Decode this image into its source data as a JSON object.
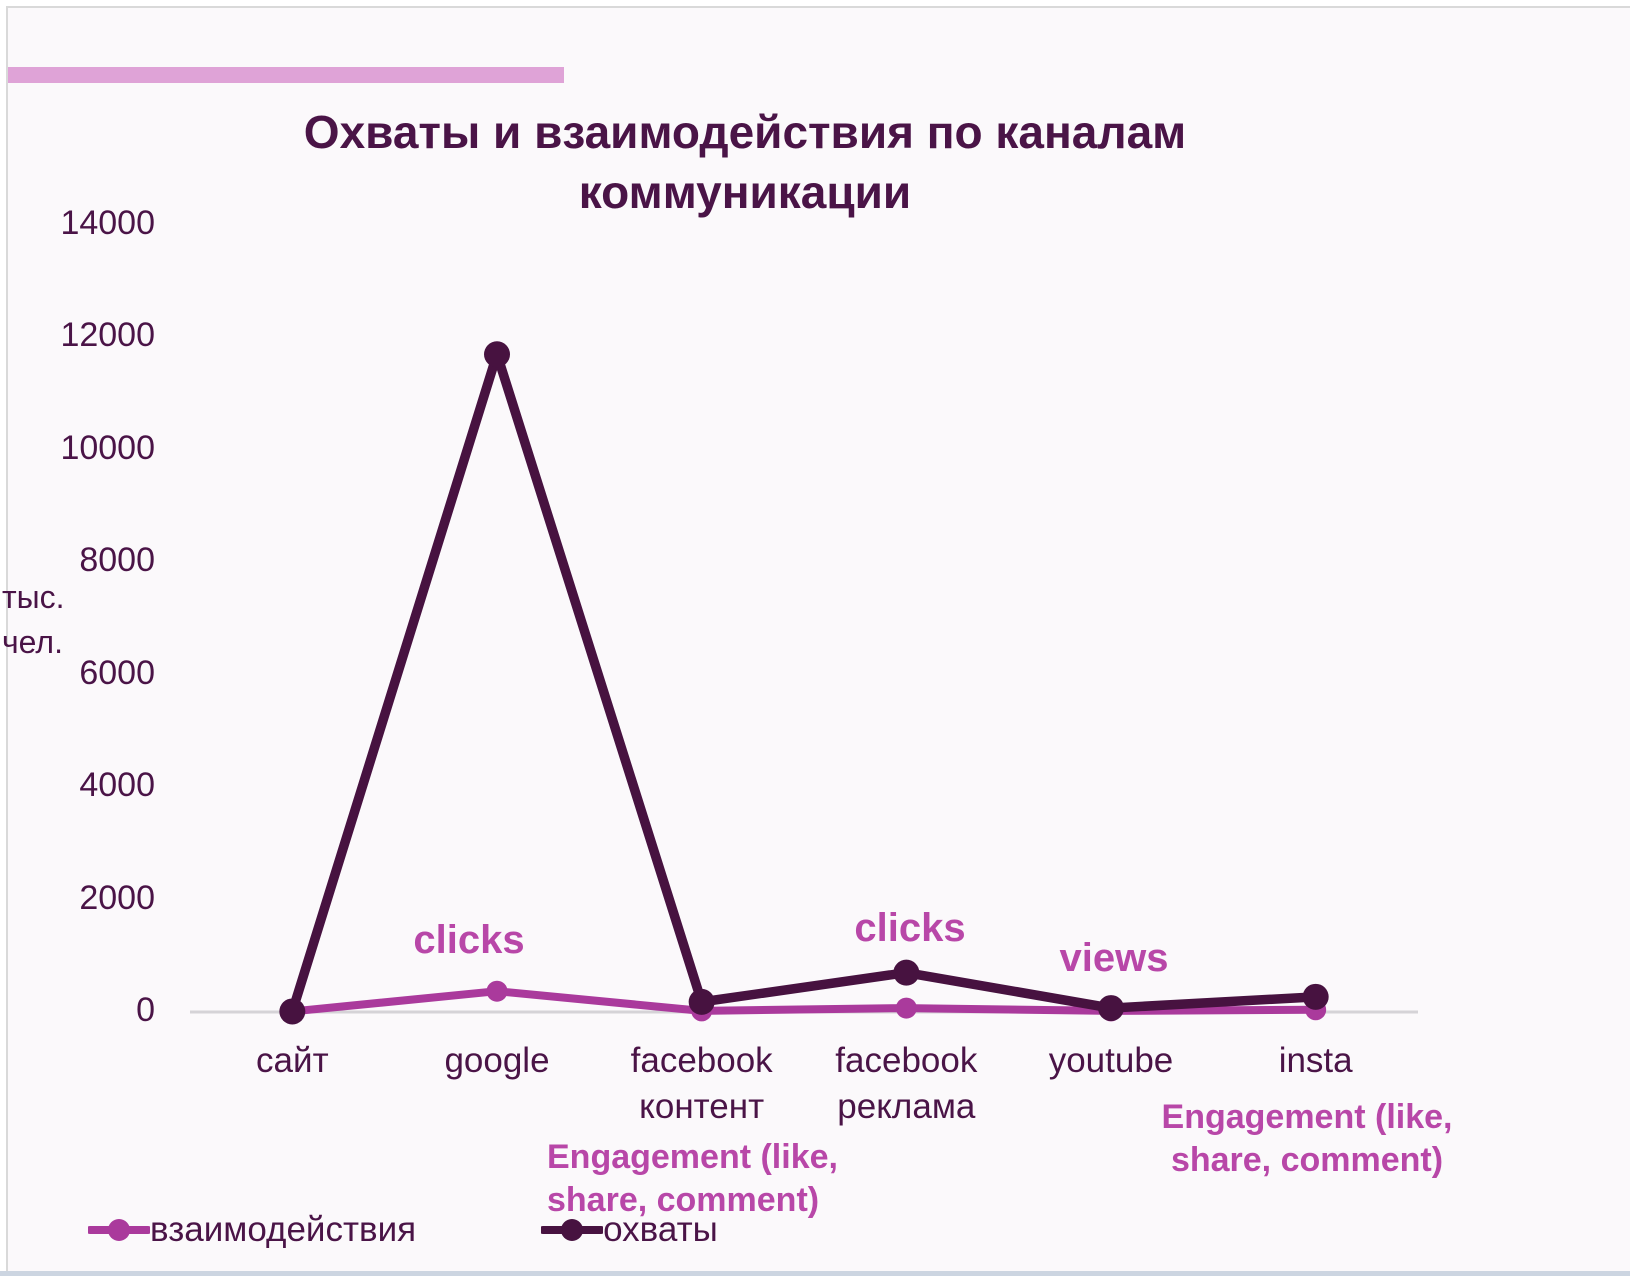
{
  "slide": {
    "accent_bar_color": "#dfa3d7"
  },
  "chart_data": {
    "type": "line",
    "title": "Охваты и взаимодействия по каналам коммуникации",
    "ylabel": "тыс. чел.",
    "xlabel": "",
    "categories": [
      "сайт",
      "google",
      "facebook контент",
      "facebook реклама",
      "youtube",
      "insta"
    ],
    "series": [
      {
        "name": "взаимодействия",
        "color": "#aa3a9c",
        "values": [
          10,
          370,
          20,
          70,
          20,
          40
        ]
      },
      {
        "name": "охваты",
        "color": "#471240",
        "values": [
          10,
          11700,
          180,
          700,
          70,
          270
        ]
      }
    ],
    "ylim": [
      0,
      14000
    ],
    "ytick_step": 2000,
    "yticks": [
      0,
      2000,
      4000,
      6000,
      8000,
      10000,
      12000,
      14000
    ],
    "grid": false,
    "legend_position": "bottom-left",
    "axis_color": "#d5d3d7",
    "text_color": "#4a1447",
    "annotation_color": "#b847a8",
    "annotations": [
      {
        "text": "clicks",
        "target": "google",
        "style": "large"
      },
      {
        "text": "clicks",
        "target": "facebook реклама",
        "style": "large"
      },
      {
        "text": "views",
        "target": "youtube",
        "style": "large"
      },
      {
        "text": "Engagement (like, share, comment)",
        "target": "facebook контент",
        "style": "small"
      },
      {
        "text": "Engagement (like, share, comment)",
        "target": "insta",
        "style": "small"
      }
    ]
  }
}
